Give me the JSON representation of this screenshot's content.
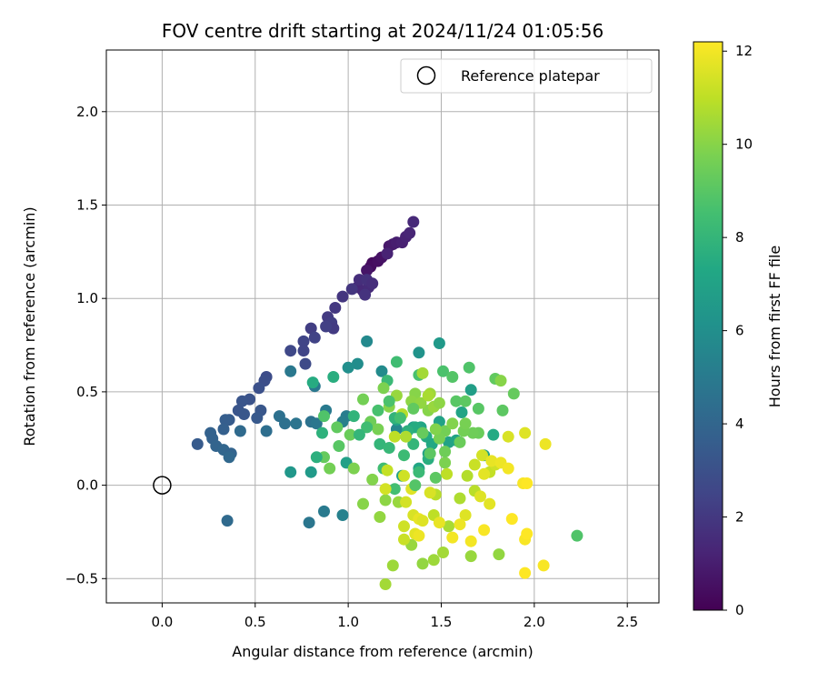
{
  "chart_data": {
    "type": "scatter",
    "title": "FOV centre drift starting at 2024/11/24 01:05:56",
    "xlabel": "Angular distance from reference (arcmin)",
    "ylabel": "Rotation from reference (arcmin)",
    "xlim": [
      -0.3,
      2.67
    ],
    "ylim": [
      -0.63,
      2.33
    ],
    "x_ticks": [
      0.0,
      0.5,
      1.0,
      1.5,
      2.0,
      2.5
    ],
    "x_tick_labels": [
      "0.0",
      "0.5",
      "1.0",
      "1.5",
      "2.0",
      "2.5"
    ],
    "y_ticks": [
      -0.5,
      0.0,
      0.5,
      1.0,
      1.5,
      2.0
    ],
    "y_tick_labels": [
      "−0.5",
      "0.0",
      "0.5",
      "1.0",
      "1.5",
      "2.0"
    ],
    "grid": true,
    "legend": {
      "position": "top-right",
      "entries": [
        {
          "label": "Reference platepar",
          "marker": "open-circle",
          "x": 0.0,
          "y": 0.0
        }
      ]
    },
    "colorbar": {
      "label": "Hours from first FF file",
      "range": [
        0,
        12.2
      ],
      "ticks": [
        0,
        2,
        4,
        6,
        8,
        10,
        12
      ],
      "tick_labels": [
        "0",
        "2",
        "4",
        "6",
        "8",
        "10",
        "12"
      ],
      "colormap": "viridis"
    },
    "points": [
      [
        1.13,
        1.19,
        0.3
      ],
      [
        1.12,
        1.17,
        0.4
      ],
      [
        1.16,
        1.2,
        0.5
      ],
      [
        1.18,
        1.22,
        0.6
      ],
      [
        1.1,
        1.15,
        0.7
      ],
      [
        1.22,
        1.28,
        0.8
      ],
      [
        1.24,
        1.29,
        0.9
      ],
      [
        1.26,
        1.3,
        1.0
      ],
      [
        1.29,
        1.3,
        1.1
      ],
      [
        1.31,
        1.33,
        1.2
      ],
      [
        1.33,
        1.35,
        1.3
      ],
      [
        1.35,
        1.41,
        1.4
      ],
      [
        1.21,
        1.24,
        1.2
      ],
      [
        1.05,
        1.06,
        1.3
      ],
      [
        1.08,
        1.04,
        1.4
      ],
      [
        1.11,
        1.06,
        1.5
      ],
      [
        1.06,
        1.1,
        1.6
      ],
      [
        1.1,
        1.1,
        1.7
      ],
      [
        1.13,
        1.08,
        1.6
      ],
      [
        1.09,
        1.02,
        1.8
      ],
      [
        1.02,
        1.05,
        1.9
      ],
      [
        0.97,
        1.01,
        1.9
      ],
      [
        0.93,
        0.95,
        2.0
      ],
      [
        0.89,
        0.9,
        2.1
      ],
      [
        0.91,
        0.87,
        2.2
      ],
      [
        0.92,
        0.84,
        2.1
      ],
      [
        0.88,
        0.85,
        2.3
      ],
      [
        0.8,
        0.84,
        2.2
      ],
      [
        0.82,
        0.79,
        2.4
      ],
      [
        0.76,
        0.77,
        2.5
      ],
      [
        0.76,
        0.72,
        2.5
      ],
      [
        0.69,
        0.72,
        2.6
      ],
      [
        0.77,
        0.65,
        2.7
      ],
      [
        0.56,
        0.58,
        2.8
      ],
      [
        0.55,
        0.56,
        2.9
      ],
      [
        0.52,
        0.52,
        3.0
      ],
      [
        0.47,
        0.46,
        3.1
      ],
      [
        0.43,
        0.45,
        3.2
      ],
      [
        0.41,
        0.4,
        3.2
      ],
      [
        0.44,
        0.38,
        3.3
      ],
      [
        0.53,
        0.4,
        3.3
      ],
      [
        0.51,
        0.36,
        3.4
      ],
      [
        0.36,
        0.35,
        3.5
      ],
      [
        0.34,
        0.35,
        3.6
      ],
      [
        0.33,
        0.3,
        3.7
      ],
      [
        0.26,
        0.28,
        3.8
      ],
      [
        0.27,
        0.25,
        3.8
      ],
      [
        0.29,
        0.21,
        3.9
      ],
      [
        0.33,
        0.19,
        4.0
      ],
      [
        0.19,
        0.22,
        3.5
      ],
      [
        0.37,
        0.17,
        3.9
      ],
      [
        0.36,
        0.15,
        4.1
      ],
      [
        0.42,
        0.29,
        4.2
      ],
      [
        0.56,
        0.29,
        4.4
      ],
      [
        0.63,
        0.37,
        4.5
      ],
      [
        0.66,
        0.33,
        4.5
      ],
      [
        0.72,
        0.33,
        4.7
      ],
      [
        0.8,
        0.34,
        4.6
      ],
      [
        0.83,
        0.33,
        4.8
      ],
      [
        0.69,
        0.61,
        4.9
      ],
      [
        0.82,
        0.53,
        4.9
      ],
      [
        0.88,
        0.4,
        5.0
      ],
      [
        0.99,
        0.37,
        5.1
      ],
      [
        0.97,
        0.34,
        5.2
      ],
      [
        0.35,
        -0.19,
        4.2
      ],
      [
        0.79,
        -0.2,
        4.8
      ],
      [
        0.87,
        -0.14,
        5.0
      ],
      [
        0.97,
        -0.16,
        5.3
      ],
      [
        1.26,
        0.3,
        5.6
      ],
      [
        1.1,
        0.77,
        5.7
      ],
      [
        1.18,
        0.61,
        5.8
      ],
      [
        1.05,
        0.65,
        5.9
      ],
      [
        1.0,
        0.63,
        6.0
      ],
      [
        1.38,
        0.71,
        6.2
      ],
      [
        1.49,
        0.76,
        6.5
      ],
      [
        0.69,
        0.07,
        6.4
      ],
      [
        0.8,
        0.07,
        6.6
      ],
      [
        0.99,
        0.12,
        6.9
      ],
      [
        1.26,
        0.35,
        7.0
      ],
      [
        1.43,
        0.17,
        6.8
      ],
      [
        1.49,
        0.34,
        7.0
      ],
      [
        1.39,
        0.31,
        7.2
      ],
      [
        1.42,
        0.26,
        7.4
      ],
      [
        1.35,
        0.31,
        6.6
      ],
      [
        1.45,
        0.22,
        7.3
      ],
      [
        1.54,
        0.23,
        7.0
      ],
      [
        1.58,
        0.24,
        7.1
      ],
      [
        1.61,
        0.39,
        7.1
      ],
      [
        1.66,
        0.51,
        6.8
      ],
      [
        1.73,
        0.16,
        7.0
      ],
      [
        1.78,
        0.27,
        7.4
      ],
      [
        1.29,
        0.05,
        7.0
      ],
      [
        1.38,
        0.09,
        7.2
      ],
      [
        1.43,
        0.14,
        7.6
      ],
      [
        1.35,
        0.22,
        8.0
      ],
      [
        1.36,
        0.31,
        7.5
      ],
      [
        1.32,
        0.29,
        7.7
      ],
      [
        1.17,
        0.22,
        8.0
      ],
      [
        1.25,
        0.36,
        7.9
      ],
      [
        1.22,
        0.2,
        8.1
      ],
      [
        1.3,
        0.16,
        8.3
      ],
      [
        1.19,
        0.09,
        8.4
      ],
      [
        1.25,
        -0.02,
        8.5
      ],
      [
        1.38,
        0.07,
        8.2
      ],
      [
        1.21,
        0.56,
        8.2
      ],
      [
        1.26,
        0.66,
        8.4
      ],
      [
        1.38,
        0.59,
        8.6
      ],
      [
        1.51,
        0.61,
        8.7
      ],
      [
        1.56,
        0.58,
        8.9
      ],
      [
        1.58,
        0.45,
        9.0
      ],
      [
        1.63,
        0.45,
        9.1
      ],
      [
        1.65,
        0.63,
        8.8
      ],
      [
        1.7,
        0.41,
        9.0
      ],
      [
        1.79,
        0.57,
        9.2
      ],
      [
        1.83,
        0.4,
        9.1
      ],
      [
        1.89,
        0.49,
        9.3
      ],
      [
        2.23,
        -0.27,
        8.8
      ],
      [
        1.7,
        0.28,
        9.4
      ],
      [
        1.67,
        0.28,
        9.5
      ],
      [
        1.62,
        0.29,
        9.6
      ],
      [
        1.52,
        0.29,
        9.6
      ],
      [
        1.49,
        0.25,
        9.7
      ],
      [
        1.52,
        0.12,
        9.8
      ],
      [
        1.47,
        0.3,
        9.9
      ],
      [
        1.43,
        0.4,
        10.0
      ],
      [
        1.36,
        0.49,
        10.0
      ],
      [
        1.34,
        0.45,
        10.1
      ],
      [
        1.39,
        0.44,
        10.2
      ],
      [
        1.26,
        0.48,
        10.3
      ],
      [
        1.22,
        0.42,
        10.0
      ],
      [
        1.19,
        0.52,
        9.8
      ],
      [
        1.08,
        0.46,
        9.6
      ],
      [
        1.12,
        0.34,
        9.5
      ],
      [
        1.16,
        0.3,
        9.7
      ],
      [
        1.01,
        0.27,
        9.4
      ],
      [
        0.94,
        0.31,
        9.2
      ],
      [
        0.95,
        0.21,
        9.0
      ],
      [
        0.87,
        0.37,
        8.8
      ],
      [
        0.87,
        0.15,
        9.3
      ],
      [
        0.9,
        0.09,
        9.6
      ],
      [
        1.03,
        0.09,
        9.8
      ],
      [
        1.13,
        0.03,
        9.9
      ],
      [
        1.08,
        -0.1,
        10.0
      ],
      [
        1.2,
        -0.08,
        10.1
      ],
      [
        1.17,
        -0.17,
        10.2
      ],
      [
        1.27,
        -0.09,
        10.3
      ],
      [
        1.24,
        -0.43,
        10.4
      ],
      [
        1.2,
        -0.53,
        10.5
      ],
      [
        1.34,
        -0.32,
        10.3
      ],
      [
        1.4,
        -0.42,
        10.2
      ],
      [
        1.46,
        -0.4,
        10.4
      ],
      [
        1.51,
        -0.36,
        10.5
      ],
      [
        1.66,
        -0.38,
        10.3
      ],
      [
        1.81,
        -0.37,
        10.2
      ],
      [
        1.54,
        -0.22,
        10.6
      ],
      [
        1.6,
        -0.07,
        10.7
      ],
      [
        1.47,
        -0.05,
        10.9
      ],
      [
        1.46,
        -0.16,
        11.0
      ],
      [
        1.64,
        0.05,
        10.8
      ],
      [
        1.68,
        -0.03,
        10.9
      ],
      [
        1.82,
        0.56,
        10.0
      ],
      [
        1.53,
        0.06,
        11.0
      ],
      [
        1.76,
        0.07,
        11.1
      ],
      [
        1.68,
        0.11,
        11.2
      ],
      [
        1.79,
        0.11,
        11.3
      ],
      [
        1.72,
        0.16,
        11.4
      ],
      [
        1.86,
        0.26,
        11.5
      ],
      [
        1.95,
        0.28,
        11.6
      ],
      [
        1.73,
        0.06,
        11.7
      ],
      [
        1.77,
        0.13,
        11.8
      ],
      [
        1.82,
        0.12,
        11.9
      ],
      [
        1.86,
        0.09,
        12.0
      ],
      [
        1.94,
        0.01,
        12.1
      ],
      [
        1.96,
        0.01,
        12.2
      ],
      [
        1.71,
        -0.06,
        11.6
      ],
      [
        1.76,
        -0.1,
        11.7
      ],
      [
        1.63,
        -0.16,
        11.6
      ],
      [
        1.49,
        -0.2,
        11.8
      ],
      [
        1.6,
        -0.21,
        11.9
      ],
      [
        1.56,
        -0.28,
        12.0
      ],
      [
        1.66,
        -0.3,
        12.0
      ],
      [
        1.73,
        -0.24,
        12.1
      ],
      [
        1.88,
        -0.18,
        12.2
      ],
      [
        1.95,
        -0.29,
        12.1
      ],
      [
        1.96,
        -0.26,
        12.2
      ],
      [
        1.95,
        -0.47,
        12.2
      ],
      [
        2.05,
        -0.43,
        12.1
      ],
      [
        2.06,
        0.22,
        11.9
      ],
      [
        1.44,
        -0.04,
        11.5
      ],
      [
        1.34,
        -0.02,
        11.6
      ],
      [
        1.31,
        -0.09,
        11.4
      ],
      [
        1.3,
        -0.22,
        11.3
      ],
      [
        1.3,
        -0.29,
        11.2
      ],
      [
        1.36,
        -0.26,
        11.7
      ],
      [
        1.35,
        -0.16,
        11.5
      ],
      [
        1.38,
        -0.18,
        11.8
      ],
      [
        1.38,
        -0.27,
        11.9
      ],
      [
        1.4,
        -0.19,
        11.6
      ],
      [
        1.2,
        -0.02,
        11.4
      ],
      [
        1.3,
        0.05,
        11.3
      ],
      [
        1.21,
        0.08,
        11.1
      ],
      [
        1.25,
        0.26,
        11.0
      ],
      [
        1.29,
        0.38,
        10.8
      ],
      [
        1.31,
        0.26,
        10.7
      ],
      [
        1.4,
        0.6,
        10.5
      ],
      [
        1.44,
        0.49,
        10.4
      ],
      [
        1.46,
        0.42,
        10.3
      ],
      [
        1.43,
        0.48,
        10.6
      ],
      [
        1.49,
        0.44,
        10.1
      ],
      [
        1.56,
        0.33,
        9.9
      ],
      [
        1.63,
        0.33,
        9.7
      ],
      [
        1.52,
        0.18,
        9.5
      ],
      [
        1.6,
        0.23,
        9.4
      ],
      [
        1.47,
        0.04,
        9.1
      ],
      [
        1.35,
        0.41,
        9.2
      ],
      [
        1.4,
        0.28,
        9.3
      ],
      [
        1.44,
        0.17,
        9.1
      ],
      [
        1.36,
        0.0,
        8.9
      ],
      [
        1.22,
        0.45,
        8.7
      ],
      [
        1.28,
        0.36,
        8.5
      ],
      [
        1.16,
        0.4,
        8.6
      ],
      [
        1.1,
        0.31,
        8.4
      ],
      [
        1.06,
        0.27,
        8.0
      ],
      [
        1.03,
        0.37,
        7.9
      ],
      [
        0.83,
        0.15,
        7.7
      ],
      [
        0.86,
        0.28,
        7.8
      ],
      [
        0.92,
        0.58,
        7.6
      ],
      [
        0.81,
        0.55,
        7.5
      ]
    ]
  }
}
